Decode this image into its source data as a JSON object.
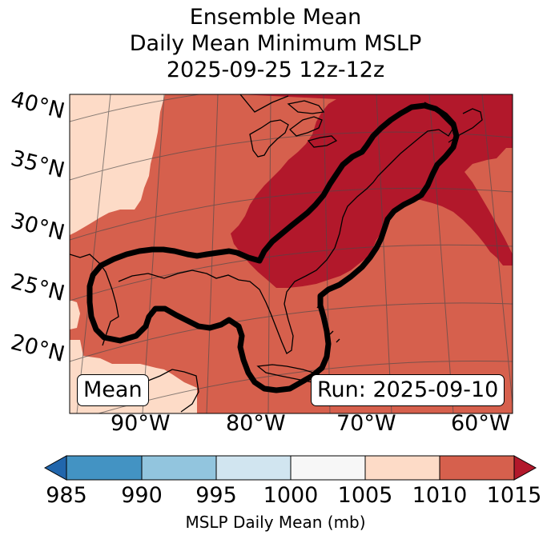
{
  "title": {
    "line1": "Ensemble Mean",
    "line2": "Daily Mean Minimum MSLP",
    "line3": "2025-09-25 12z-12z"
  },
  "map": {
    "lat_labels": [
      "40°N",
      "35°N",
      "30°N",
      "25°N",
      "20°N"
    ],
    "lon_labels": [
      "90°W",
      "80°W",
      "70°W",
      "60°W"
    ],
    "mean_box": "Mean",
    "run_box": "Run: 2025-09-10",
    "regions": [
      {
        "name": "1005-1010",
        "color": "#fddbc7"
      },
      {
        "name": "1010-1015",
        "color": "#d6604d"
      },
      {
        "name": "above-1015",
        "color": "#b2182b"
      }
    ],
    "contour_color": "#000000"
  },
  "colorbar": {
    "label": "MSLP Daily Mean (mb)",
    "ticks": [
      "985",
      "990",
      "995",
      "1000",
      "1005",
      "1010",
      "1015"
    ],
    "colors": [
      "#2166ac",
      "#4393c3",
      "#92c5de",
      "#d1e5f0",
      "#f7f7f7",
      "#fddbc7",
      "#d6604d",
      "#b2182b"
    ]
  }
}
